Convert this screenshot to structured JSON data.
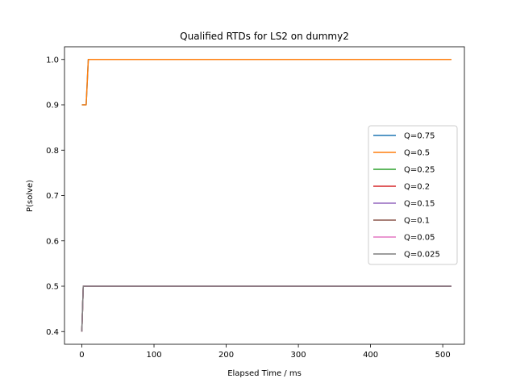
{
  "chart_data": {
    "type": "line",
    "title": "Qualified RTDs for LS2 on dummy2",
    "xlabel": "Elapsed Time / ms",
    "ylabel": "P(solve)",
    "xlim": [
      -24,
      530
    ],
    "ylim": [
      0.372,
      1.028
    ],
    "xticks": [
      0,
      100,
      200,
      300,
      400,
      500
    ],
    "yticks": [
      0.4,
      0.5,
      0.6,
      0.7,
      0.8,
      0.9,
      1.0
    ],
    "xtick_labels": [
      "0",
      "100",
      "200",
      "300",
      "400",
      "500"
    ],
    "ytick_labels": [
      "0.4",
      "0.5",
      "0.6",
      "0.7",
      "0.8",
      "0.9",
      "1.0"
    ],
    "legend_position": "center-right",
    "grid": false,
    "series": [
      {
        "name": "Q=0.75",
        "color": "#1f77b4",
        "x": [
          0,
          2,
          6,
          9,
          512
        ],
        "y": [
          0.9,
          0.9,
          0.9,
          1.0,
          1.0
        ]
      },
      {
        "name": "Q=0.5",
        "color": "#ff7f0e",
        "x": [
          0,
          2,
          6,
          9,
          512
        ],
        "y": [
          0.9,
          0.9,
          0.9,
          1.0,
          1.0
        ]
      },
      {
        "name": "Q=0.25",
        "color": "#2ca02c",
        "x": [
          0,
          1,
          2,
          512
        ],
        "y": [
          0.4,
          0.45,
          0.5,
          0.5
        ]
      },
      {
        "name": "Q=0.2",
        "color": "#d62728",
        "x": [
          0,
          1,
          2,
          512
        ],
        "y": [
          0.4,
          0.45,
          0.5,
          0.5
        ]
      },
      {
        "name": "Q=0.15",
        "color": "#9467bd",
        "x": [
          0,
          1,
          2,
          512
        ],
        "y": [
          0.4,
          0.45,
          0.5,
          0.5
        ]
      },
      {
        "name": "Q=0.1",
        "color": "#8c564b",
        "x": [
          0,
          1,
          2,
          512
        ],
        "y": [
          0.4,
          0.45,
          0.5,
          0.5
        ]
      },
      {
        "name": "Q=0.05",
        "color": "#e377c2",
        "x": [
          0,
          1,
          2,
          512
        ],
        "y": [
          0.4,
          0.45,
          0.5,
          0.5
        ]
      },
      {
        "name": "Q=0.025",
        "color": "#7f7f7f",
        "x": [
          0,
          1,
          2,
          512
        ],
        "y": [
          0.4,
          0.45,
          0.5,
          0.5
        ]
      }
    ]
  }
}
